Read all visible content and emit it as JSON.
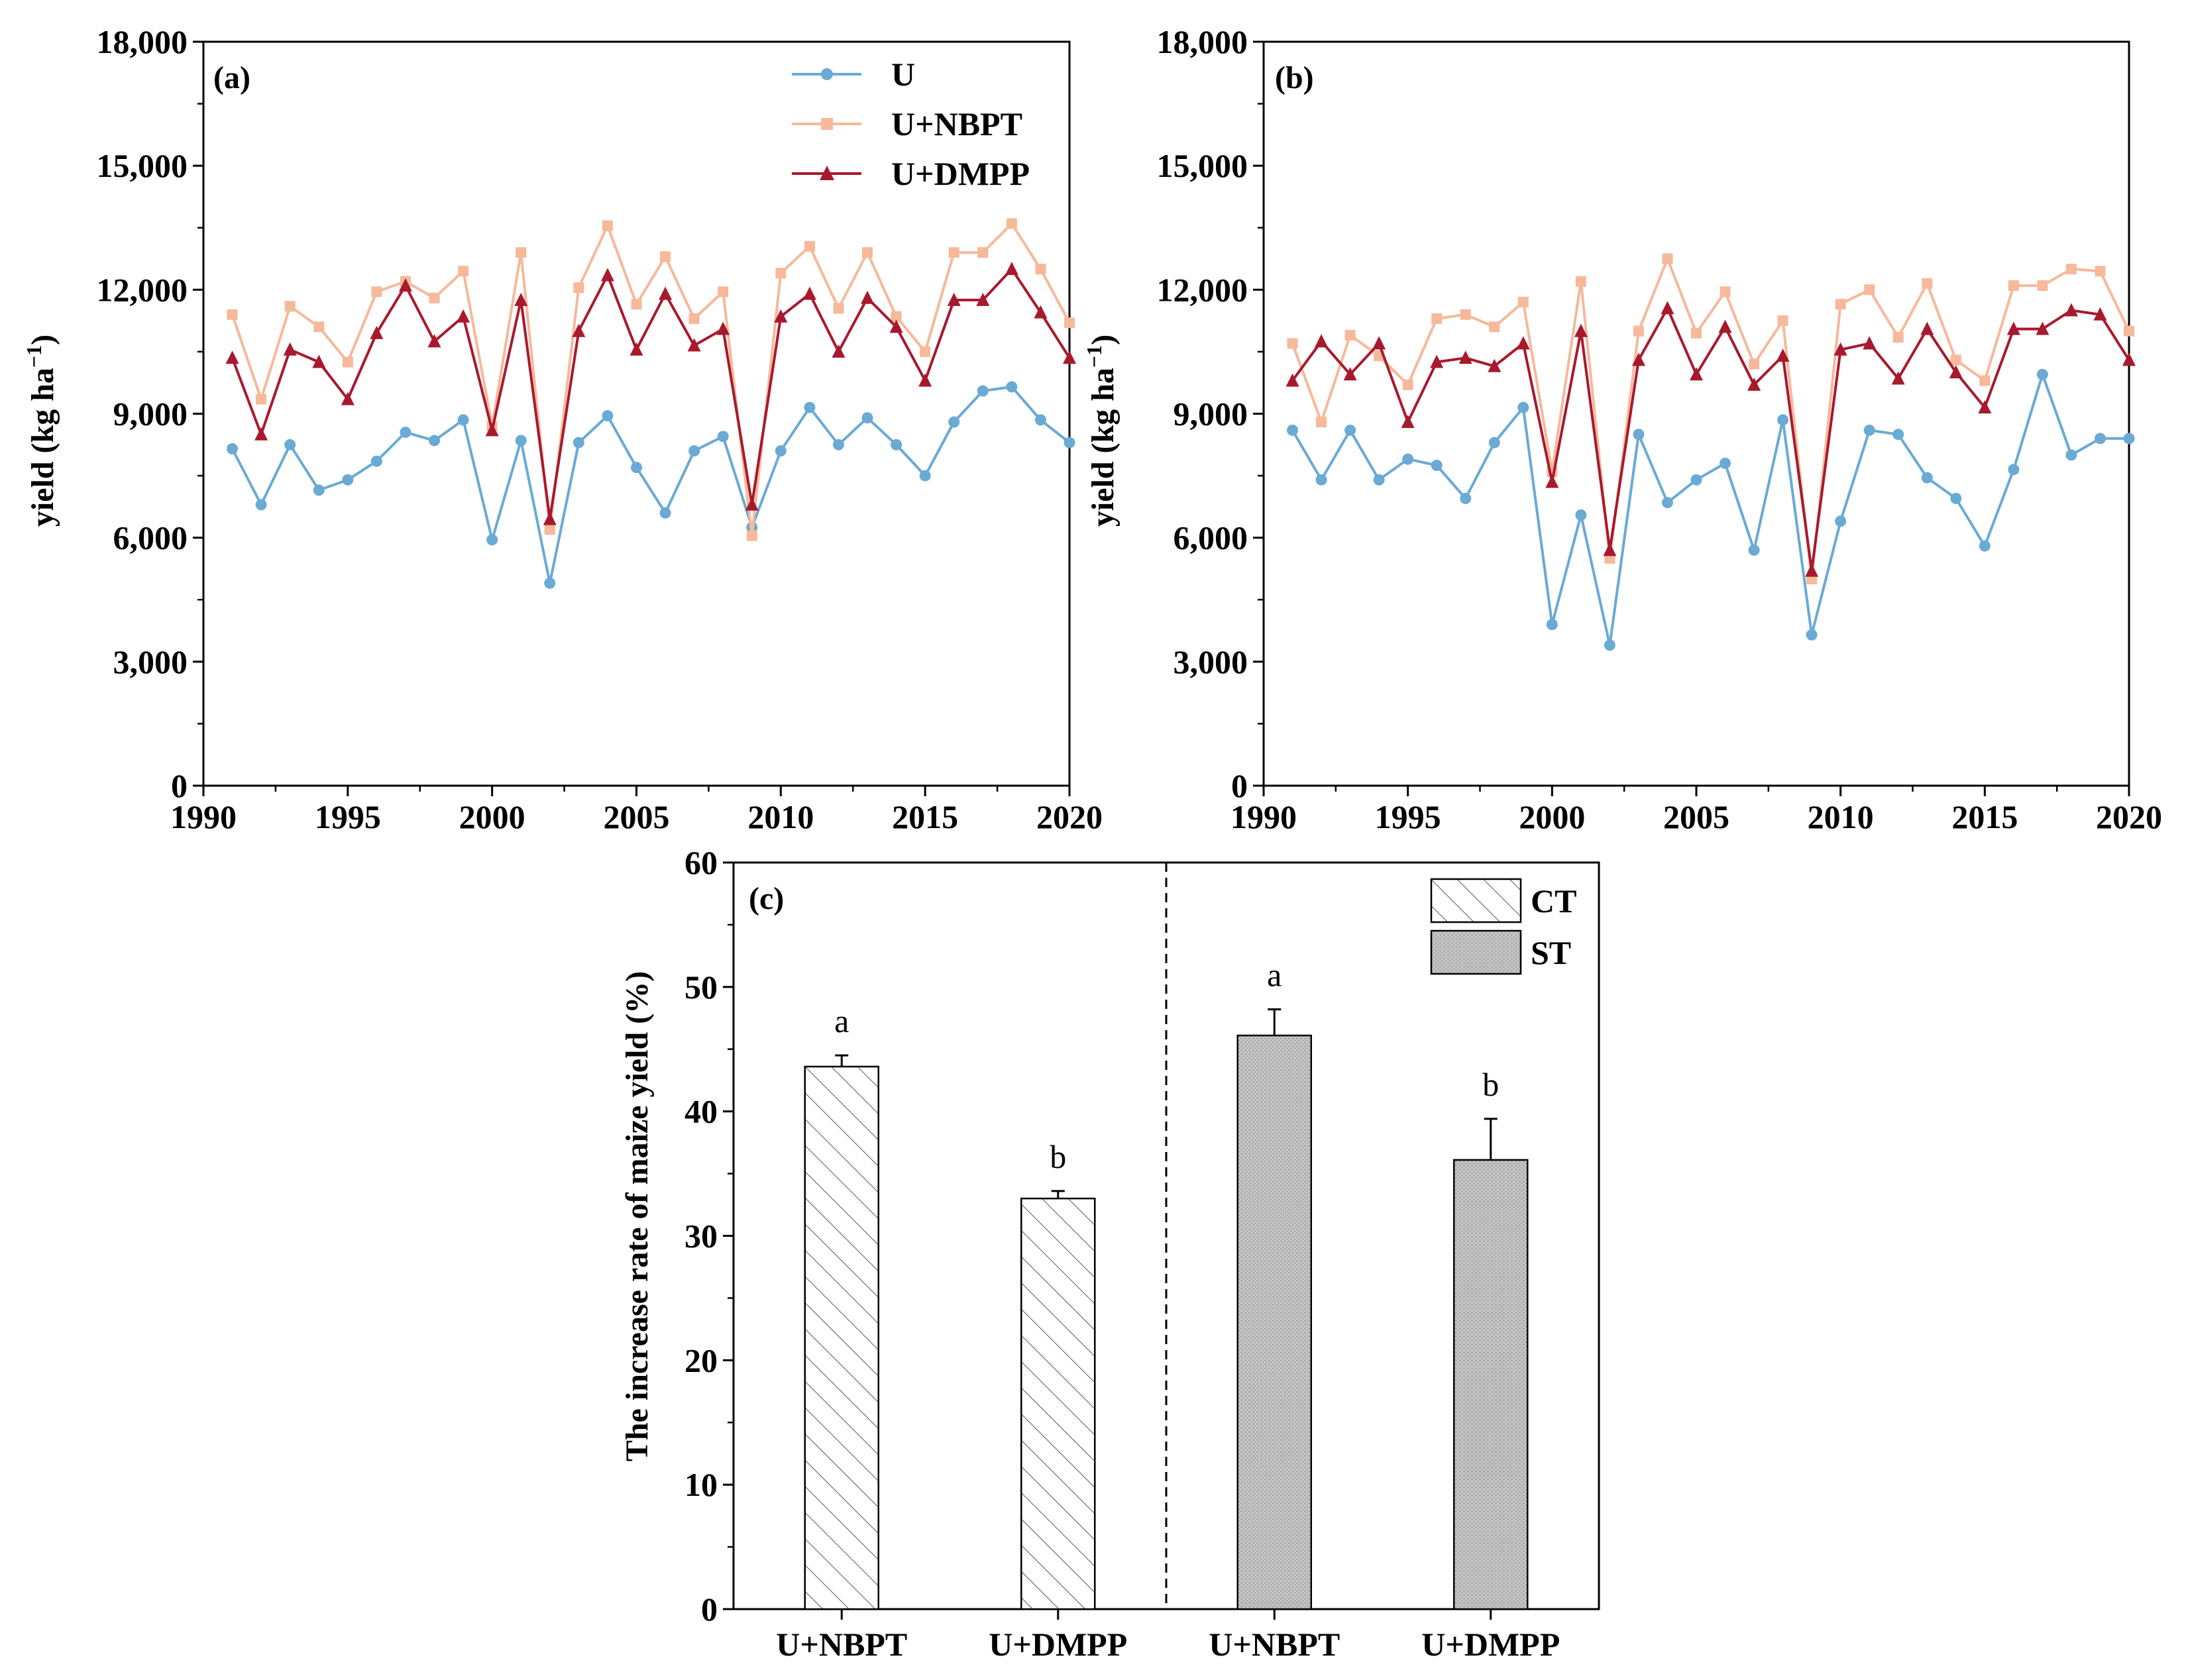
{
  "chart_data": [
    {
      "type": "line",
      "panel": "(a)",
      "ylabel": "yield (kg ha",
      "ylabel_sup": "−1",
      "ylabel_close": ")",
      "xlim": [
        1990,
        2020
      ],
      "ylim": [
        0,
        18000
      ],
      "xticks": [
        1990,
        1995,
        2000,
        2005,
        2010,
        2015,
        2020
      ],
      "yticks": [
        0,
        3000,
        6000,
        9000,
        12000,
        15000,
        18000
      ],
      "xtick_labels": [
        "1990",
        "1995",
        "2000",
        "2005",
        "2010",
        "2015",
        "2020"
      ],
      "ytick_labels": [
        "0",
        "3,000",
        "6,000",
        "9,000",
        "12,000",
        "15,000",
        "18,000"
      ],
      "legend_position": "top-right",
      "x": [
        1991,
        1992,
        1993,
        1994,
        1995,
        1996,
        1997,
        1998,
        1999,
        2000,
        2001,
        2002,
        2003,
        2004,
        2005,
        2006,
        2007,
        2008,
        2009,
        2010,
        2011,
        2012,
        2013,
        2014,
        2015,
        2016,
        2017,
        2018,
        2019,
        2020
      ],
      "series": [
        {
          "name": "U",
          "color": "#6aaad5",
          "marker": "circle",
          "values": [
            8150,
            6800,
            8250,
            7150,
            7400,
            7850,
            8550,
            8350,
            8850,
            5950,
            8350,
            4900,
            8300,
            8950,
            7700,
            6600,
            8100,
            8450,
            6250,
            8100,
            9150,
            8250,
            8900,
            8250,
            7500,
            8800,
            9550,
            9650,
            8850,
            8300
          ]
        },
        {
          "name": "U+NBPT",
          "color": "#f6b99a",
          "marker": "square",
          "values": [
            11400,
            9350,
            11600,
            11100,
            10250,
            11950,
            12200,
            11800,
            12450,
            8700,
            12900,
            6200,
            12050,
            13550,
            11650,
            12800,
            11300,
            11950,
            6050,
            12400,
            13050,
            11550,
            12900,
            11350,
            10500,
            12900,
            12900,
            13600,
            12500,
            11200
          ]
        },
        {
          "name": "U+DMPP",
          "color": "#a8192e",
          "marker": "triangle",
          "values": [
            10350,
            8500,
            10550,
            10250,
            9350,
            10950,
            12100,
            10750,
            11350,
            8600,
            11750,
            6450,
            11000,
            12350,
            10550,
            11900,
            10650,
            11050,
            6800,
            11350,
            11900,
            10500,
            11800,
            11100,
            9800,
            11750,
            11750,
            12500,
            11450,
            10350
          ]
        }
      ]
    },
    {
      "type": "line",
      "panel": "(b)",
      "ylabel": "yield (kg ha",
      "ylabel_sup": "−1",
      "ylabel_close": ")",
      "xlim": [
        1990,
        2020
      ],
      "ylim": [
        0,
        18000
      ],
      "xticks": [
        1990,
        1995,
        2000,
        2005,
        2010,
        2015,
        2020
      ],
      "yticks": [
        0,
        3000,
        6000,
        9000,
        12000,
        15000,
        18000
      ],
      "xtick_labels": [
        "1990",
        "1995",
        "2000",
        "2005",
        "2010",
        "2015",
        "2020"
      ],
      "ytick_labels": [
        "0",
        "3,000",
        "6,000",
        "9,000",
        "12,000",
        "15,000",
        "18,000"
      ],
      "x": [
        1991,
        1992,
        1993,
        1994,
        1995,
        1996,
        1997,
        1998,
        1999,
        2000,
        2001,
        2002,
        2003,
        2004,
        2005,
        2006,
        2007,
        2008,
        2009,
        2010,
        2011,
        2012,
        2013,
        2014,
        2015,
        2016,
        2017,
        2018,
        2019,
        2020
      ],
      "series": [
        {
          "name": "U",
          "color": "#6aaad5",
          "marker": "circle",
          "values": [
            8600,
            7400,
            8600,
            7400,
            7900,
            7750,
            6950,
            8300,
            9150,
            3900,
            6550,
            3400,
            8500,
            6850,
            7400,
            7800,
            5700,
            8850,
            3650,
            6400,
            8600,
            8500,
            7450,
            6950,
            5800,
            7650,
            9950,
            8000,
            8400,
            8400
          ]
        },
        {
          "name": "U+NBPT",
          "color": "#f6b99a",
          "marker": "square",
          "values": [
            10700,
            8800,
            10900,
            10400,
            9700,
            11300,
            11400,
            11100,
            11700,
            7600,
            12200,
            5500,
            11000,
            12750,
            10950,
            11950,
            10200,
            11250,
            5000,
            11650,
            12000,
            10850,
            12150,
            10300,
            9800,
            12100,
            12100,
            12500,
            12450,
            11000
          ]
        },
        {
          "name": "U+DMPP",
          "color": "#a8192e",
          "marker": "triangle",
          "values": [
            9800,
            10750,
            9950,
            10700,
            8800,
            10250,
            10350,
            10150,
            10700,
            7350,
            11000,
            5700,
            10300,
            11550,
            9950,
            11100,
            9700,
            10400,
            5200,
            10550,
            10700,
            9850,
            11050,
            10000,
            9150,
            11050,
            11050,
            11500,
            11400,
            10300
          ]
        }
      ]
    },
    {
      "type": "bar",
      "panel": "(c)",
      "ylabel": "The increase rate of maize yield (%)",
      "ylim": [
        0,
        60
      ],
      "yticks": [
        0,
        10,
        20,
        30,
        40,
        50,
        60
      ],
      "ytick_labels": [
        "0",
        "10",
        "20",
        "30",
        "40",
        "50",
        "60"
      ],
      "categories": [
        "U+NBPT",
        "U+DMPP",
        "U+NBPT",
        "U+DMPP"
      ],
      "groups": [
        "CT",
        "CT",
        "ST",
        "ST"
      ],
      "values": [
        43.6,
        33.0,
        46.1,
        36.1
      ],
      "errors": [
        0.9,
        0.6,
        2.1,
        3.3
      ],
      "significance": [
        "a",
        "b",
        "a",
        "b"
      ],
      "legend": [
        "CT",
        "ST"
      ],
      "legend_position": "top-right"
    }
  ]
}
